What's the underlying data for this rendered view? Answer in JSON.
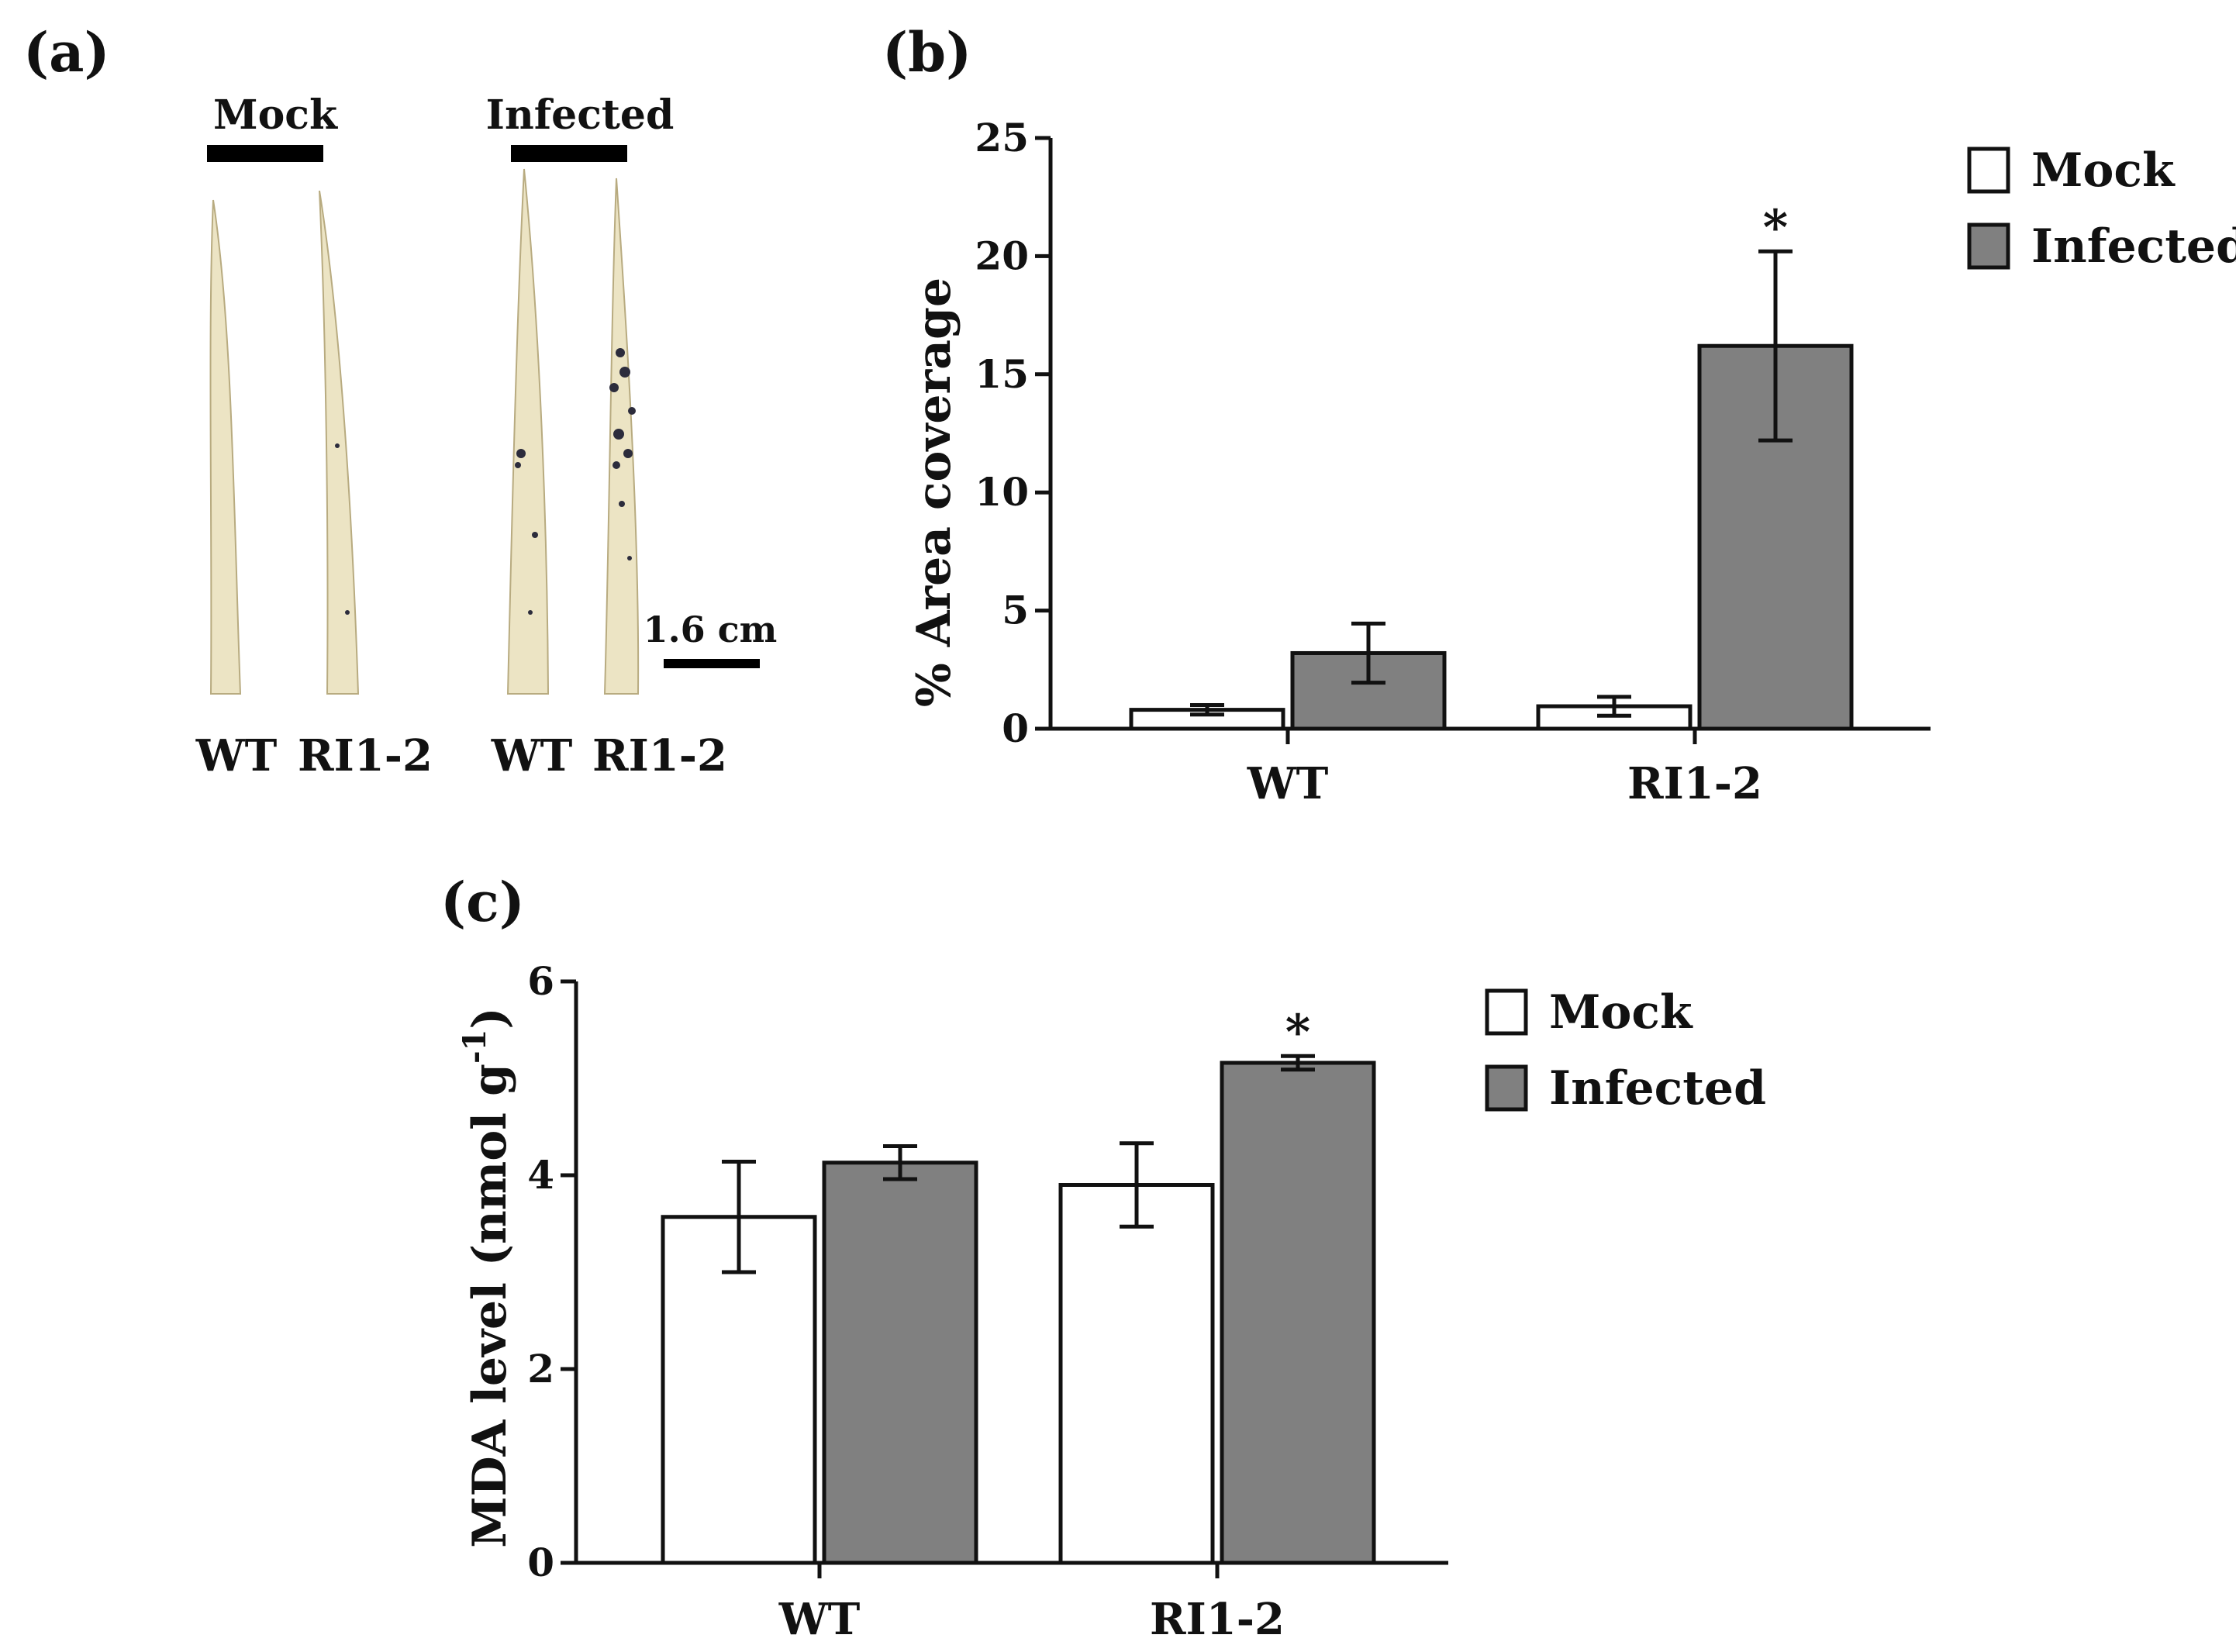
{
  "panel_a": {
    "letter": "(a)",
    "mock_label": "Mock",
    "infected_label": "Infected",
    "scale_label": "1.6 cm",
    "leaf_labels": [
      "WT",
      "RI1-2",
      "WT",
      "RI1-2"
    ],
    "colors": {
      "leaf": "#ece4c4",
      "leaf_edge": "#b8ab80",
      "lesion": "#2c2c3c"
    }
  },
  "chart_data": [
    {
      "panel": "(b)",
      "type": "bar",
      "title": "",
      "xlabel": "",
      "ylabel": "% Area coverage",
      "ylim": [
        0,
        25
      ],
      "yticks": [
        0,
        5,
        10,
        15,
        20,
        25
      ],
      "categories": [
        "WT",
        "RI1-2"
      ],
      "series": [
        {
          "name": "Mock",
          "color": "#ffffff",
          "values": [
            0.8,
            0.95
          ],
          "errors": [
            0.2,
            0.4
          ]
        },
        {
          "name": "Infected",
          "color": "#808080",
          "values": [
            3.2,
            16.2
          ],
          "errors": [
            1.25,
            4.0
          ]
        }
      ],
      "significance": [
        {
          "category": "RI1-2",
          "series": "Infected",
          "label": "*"
        }
      ],
      "legend": "top-right"
    },
    {
      "panel": "(c)",
      "type": "bar",
      "title": "",
      "xlabel": "",
      "ylabel": "MDA level (nmol g",
      "ylabel_sup": "-1",
      "ylabel_end": ")",
      "ylim": [
        0,
        6
      ],
      "yticks": [
        0,
        2,
        4,
        6
      ],
      "categories": [
        "WT",
        "RI1-2"
      ],
      "series": [
        {
          "name": "Mock",
          "color": "#ffffff",
          "values": [
            3.57,
            3.9
          ],
          "errors": [
            0.57,
            0.43
          ]
        },
        {
          "name": "Infected",
          "color": "#808080",
          "values": [
            4.13,
            5.16
          ],
          "errors": [
            0.17,
            0.07
          ]
        }
      ],
      "significance": [
        {
          "category": "RI1-2",
          "series": "Infected",
          "label": "*"
        }
      ],
      "legend": "top-right"
    }
  ]
}
